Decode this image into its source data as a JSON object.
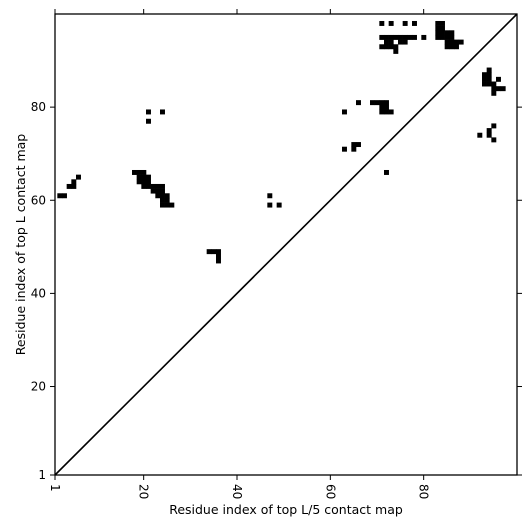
{
  "chart_data": {
    "type": "heatmap",
    "title": "",
    "xlabel": "Residue index of top L/5 contact map",
    "ylabel": "Residue index of top L contact map",
    "xlim": [
      1,
      100
    ],
    "ylim": [
      1,
      100
    ],
    "xticks": [
      1,
      20,
      40,
      60,
      80
    ],
    "xtick_labels": [
      "1",
      "20",
      "40",
      "60",
      "80"
    ],
    "yticks": [
      1,
      20,
      40,
      60,
      80
    ],
    "ytick_labels": [
      "1",
      "20",
      "40",
      "60",
      "80"
    ],
    "diagonal_line": true,
    "grid": false,
    "mark_color": "#000000",
    "contacts": [
      [
        2,
        61
      ],
      [
        3,
        61
      ],
      [
        4,
        63
      ],
      [
        5,
        63
      ],
      [
        5,
        64
      ],
      [
        6,
        65
      ],
      [
        18,
        66
      ],
      [
        19,
        66
      ],
      [
        20,
        66
      ],
      [
        19,
        65
      ],
      [
        20,
        65
      ],
      [
        21,
        65
      ],
      [
        19,
        64
      ],
      [
        20,
        64
      ],
      [
        21,
        64
      ],
      [
        20,
        63
      ],
      [
        21,
        63
      ],
      [
        22,
        63
      ],
      [
        23,
        63
      ],
      [
        24,
        63
      ],
      [
        22,
        62
      ],
      [
        23,
        62
      ],
      [
        24,
        62
      ],
      [
        23,
        61
      ],
      [
        24,
        61
      ],
      [
        25,
        61
      ],
      [
        24,
        60
      ],
      [
        25,
        60
      ],
      [
        24,
        59
      ],
      [
        25,
        59
      ],
      [
        26,
        59
      ],
      [
        21,
        79
      ],
      [
        24,
        79
      ],
      [
        21,
        77
      ],
      [
        34,
        49
      ],
      [
        35,
        49
      ],
      [
        36,
        49
      ],
      [
        36,
        48
      ],
      [
        36,
        47
      ],
      [
        47,
        61
      ],
      [
        47,
        59
      ],
      [
        49,
        59
      ],
      [
        63,
        79
      ],
      [
        63,
        71
      ],
      [
        65,
        72
      ],
      [
        66,
        72
      ],
      [
        65,
        71
      ],
      [
        66,
        81
      ],
      [
        69,
        81
      ],
      [
        70,
        81
      ],
      [
        71,
        81
      ],
      [
        72,
        81
      ],
      [
        71,
        80
      ],
      [
        72,
        80
      ],
      [
        71,
        79
      ],
      [
        72,
        79
      ],
      [
        73,
        79
      ],
      [
        72,
        66
      ],
      [
        71,
        98
      ],
      [
        73,
        98
      ],
      [
        76,
        98
      ],
      [
        78,
        98
      ],
      [
        71,
        95
      ],
      [
        72,
        95
      ],
      [
        73,
        95
      ],
      [
        74,
        95
      ],
      [
        75,
        95
      ],
      [
        76,
        95
      ],
      [
        77,
        95
      ],
      [
        78,
        95
      ],
      [
        80,
        95
      ],
      [
        71,
        93
      ],
      [
        72,
        93
      ],
      [
        73,
        93
      ],
      [
        74,
        93
      ],
      [
        72,
        94
      ],
      [
        73,
        94
      ],
      [
        75,
        94
      ],
      [
        76,
        94
      ],
      [
        74,
        92
      ],
      [
        83,
        98
      ],
      [
        84,
        98
      ],
      [
        83,
        97
      ],
      [
        84,
        97
      ],
      [
        83,
        96
      ],
      [
        84,
        96
      ],
      [
        85,
        96
      ],
      [
        86,
        96
      ],
      [
        83,
        95
      ],
      [
        84,
        95
      ],
      [
        85,
        95
      ],
      [
        86,
        95
      ],
      [
        85,
        94
      ],
      [
        86,
        94
      ],
      [
        87,
        94
      ],
      [
        88,
        94
      ],
      [
        85,
        93
      ],
      [
        86,
        93
      ],
      [
        87,
        93
      ],
      [
        94,
        88
      ],
      [
        93,
        87
      ],
      [
        94,
        87
      ],
      [
        93,
        86
      ],
      [
        94,
        86
      ],
      [
        96,
        86
      ],
      [
        93,
        85
      ],
      [
        94,
        85
      ],
      [
        95,
        85
      ],
      [
        95,
        84
      ],
      [
        96,
        84
      ],
      [
        97,
        84
      ],
      [
        95,
        83
      ],
      [
        95,
        76
      ],
      [
        92,
        74
      ],
      [
        94,
        75
      ],
      [
        94,
        74
      ],
      [
        95,
        73
      ]
    ]
  }
}
